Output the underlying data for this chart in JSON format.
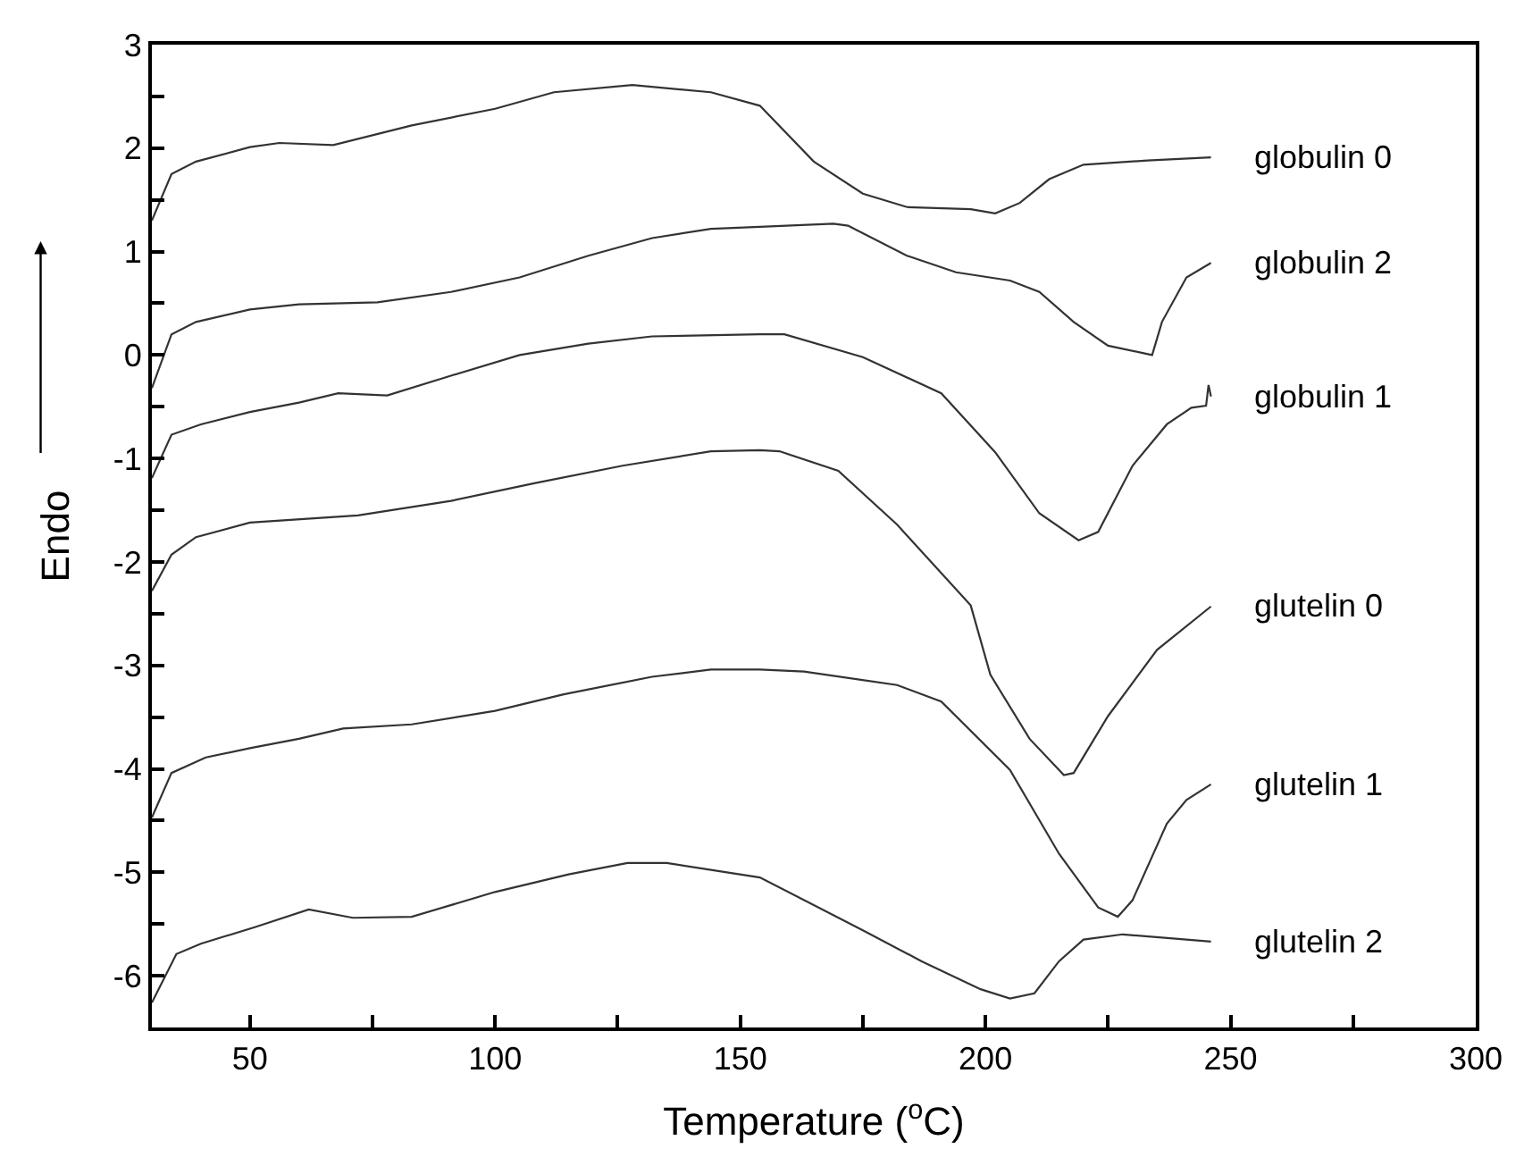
{
  "chart_data": {
    "type": "line",
    "xlabel": "Temperature ($^{o}$C)",
    "ylabel": "Endo",
    "xlim": [
      30,
      300
    ],
    "ylim": [
      -6.5,
      3
    ],
    "xticks": [
      50,
      {
        "value": 75,
        "label": null
      },
      100,
      {
        "value": 125,
        "label": null
      },
      150,
      {
        "value": 175,
        "label": null
      },
      200,
      {
        "value": 225,
        "label": null
      },
      250,
      {
        "value": 275,
        "label": null
      },
      300
    ],
    "yticks": [
      -6,
      {
        "value": -5.5,
        "label": null
      },
      -5,
      {
        "value": -4.5,
        "label": null
      },
      -4,
      {
        "value": -3.5,
        "label": null
      },
      -3,
      {
        "value": -2.5,
        "label": null
      },
      -2,
      {
        "value": -1.5,
        "label": null
      },
      -1,
      {
        "value": -0.5,
        "label": null
      },
      0,
      {
        "value": 0.5,
        "label": null
      },
      1,
      {
        "value": 1.5,
        "label": null
      },
      2,
      {
        "value": 2.5,
        "label": null
      },
      3
    ],
    "legend": false,
    "marker": "none",
    "line_style": "solid",
    "series": [
      {
        "name": "globulin 0",
        "color": "#333333",
        "x": [
          30,
          34,
          39,
          50,
          56,
          67,
          83,
          100,
          112,
          128,
          144,
          154,
          165,
          175,
          184,
          197,
          202,
          207,
          213,
          220,
          233,
          246
        ],
        "values": [
          1.3,
          1.75,
          1.87,
          2.01,
          2.05,
          2.03,
          2.22,
          2.38,
          2.54,
          2.61,
          2.54,
          2.41,
          1.87,
          1.56,
          1.43,
          1.41,
          1.37,
          1.47,
          1.7,
          1.84,
          1.88,
          1.91
        ]
      },
      {
        "name": "globulin 2",
        "color": "#333333",
        "x": [
          30,
          34,
          39,
          50,
          60,
          76,
          91,
          105,
          119,
          132,
          144,
          154,
          169,
          172,
          184,
          194,
          205,
          211,
          218,
          225,
          234,
          236,
          241,
          246
        ],
        "values": [
          -0.32,
          0.2,
          0.32,
          0.44,
          0.49,
          0.51,
          0.61,
          0.75,
          0.96,
          1.13,
          1.22,
          1.24,
          1.27,
          1.25,
          0.96,
          0.8,
          0.72,
          0.61,
          0.32,
          0.09,
          0.0,
          0.32,
          0.75,
          0.89
        ]
      },
      {
        "name": "globulin 1",
        "color": "#333333",
        "x": [
          30,
          34,
          40,
          50,
          60,
          68,
          78,
          91,
          105,
          119,
          132,
          154,
          159,
          175,
          191,
          202,
          211,
          219,
          223,
          230,
          237,
          242,
          245,
          245.5,
          246
        ],
        "values": [
          -1.19,
          -0.77,
          -0.67,
          -0.55,
          -0.46,
          -0.37,
          -0.39,
          -0.2,
          0.0,
          0.11,
          0.18,
          0.2,
          0.2,
          -0.02,
          -0.37,
          -0.94,
          -1.53,
          -1.79,
          -1.71,
          -1.07,
          -0.67,
          -0.51,
          -0.49,
          -0.29,
          -0.4
        ]
      },
      {
        "name": "glutelin 0",
        "color": "#333333",
        "x": [
          30,
          34,
          39,
          50,
          72,
          91,
          108,
          126,
          144,
          154,
          158,
          170,
          182,
          197,
          201,
          209,
          216,
          218,
          225,
          235,
          246
        ],
        "values": [
          -2.28,
          -1.93,
          -1.76,
          -1.62,
          -1.55,
          -1.41,
          -1.24,
          -1.07,
          -0.93,
          -0.92,
          -0.93,
          -1.12,
          -1.64,
          -2.42,
          -3.09,
          -3.71,
          -4.06,
          -4.04,
          -3.49,
          -2.85,
          -2.43
        ]
      },
      {
        "name": "glutelin 1",
        "color": "#333333",
        "x": [
          30,
          34,
          41,
          50,
          60,
          69,
          83,
          100,
          114,
          132,
          144,
          154,
          163,
          182,
          191,
          205,
          215,
          223,
          227,
          230,
          237,
          241,
          246
        ],
        "values": [
          -4.47,
          -4.04,
          -3.89,
          -3.8,
          -3.71,
          -3.61,
          -3.57,
          -3.44,
          -3.28,
          -3.11,
          -3.04,
          -3.04,
          -3.06,
          -3.19,
          -3.35,
          -4.01,
          -4.82,
          -5.34,
          -5.43,
          -5.27,
          -4.53,
          -4.3,
          -4.15
        ]
      },
      {
        "name": "glutelin 2",
        "color": "#333333",
        "x": [
          30,
          35,
          40,
          51,
          62,
          71,
          83,
          100,
          115,
          127,
          135,
          154,
          175,
          187,
          199,
          205,
          210,
          215,
          220,
          228,
          246
        ],
        "values": [
          -6.26,
          -5.79,
          -5.69,
          -5.53,
          -5.36,
          -5.44,
          -5.43,
          -5.19,
          -5.02,
          -4.91,
          -4.91,
          -5.05,
          -5.56,
          -5.86,
          -6.13,
          -6.22,
          -6.17,
          -5.86,
          -5.65,
          -5.6,
          -5.67
        ]
      }
    ]
  }
}
